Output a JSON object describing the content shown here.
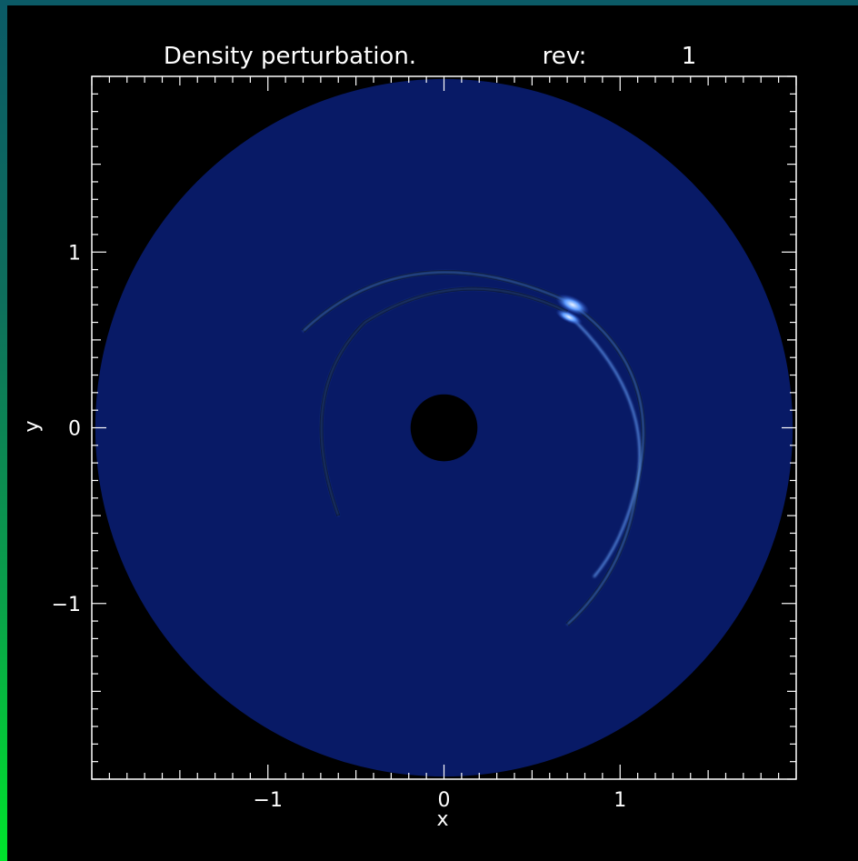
{
  "chart_data": {
    "type": "heatmap",
    "title": "Density perturbation.",
    "title_suffix_label": "rev:",
    "title_suffix_value": "1",
    "xlabel": "x",
    "ylabel": "y",
    "xlim": [
      -2,
      2
    ],
    "ylim": [
      -2,
      2
    ],
    "x_ticks": [
      -1,
      0,
      1
    ],
    "y_ticks": [
      -1,
      0,
      1
    ],
    "x_tick_labels": [
      "−1",
      "0",
      "1"
    ],
    "y_tick_labels": [
      "−1",
      "0",
      "1"
    ],
    "minor_tick_step": 0.1,
    "grid": false,
    "disk": {
      "outer_radius": 1.98,
      "inner_radius": 0.19
    },
    "spiral_features": [
      {
        "name": "outer arm",
        "start": [
          0.7,
          0.7
        ],
        "end": [
          1.1,
          -0.3
        ]
      },
      {
        "name": "inner arm",
        "start": [
          0.7,
          0.7
        ],
        "end": [
          -0.7,
          0.2
        ]
      },
      {
        "name": "bright clump",
        "center": [
          0.73,
          0.7
        ]
      }
    ],
    "colors": {
      "disk": "#081a66",
      "hole": "#000000",
      "feature": "#4d8eff",
      "axes": "#ffffff"
    }
  }
}
